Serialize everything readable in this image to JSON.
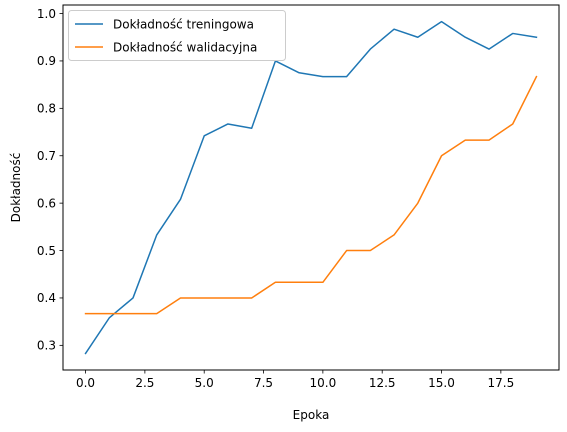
{
  "chart_data": {
    "type": "line",
    "title": "",
    "xlabel": "Epoka",
    "ylabel": "Dokładność",
    "xlim": [
      -0.95,
      19.95
    ],
    "ylim": [
      0.248,
      1.018
    ],
    "x_ticks": [
      0.0,
      2.5,
      5.0,
      7.5,
      10.0,
      12.5,
      15.0,
      17.5
    ],
    "x_tick_labels": [
      "0.0",
      "2.5",
      "5.0",
      "7.5",
      "10.0",
      "12.5",
      "15.0",
      "17.5"
    ],
    "y_ticks": [
      0.3,
      0.4,
      0.5,
      0.6,
      0.7,
      0.8,
      0.9,
      1.0
    ],
    "y_tick_labels": [
      "0.3",
      "0.4",
      "0.5",
      "0.6",
      "0.7",
      "0.8",
      "0.9",
      "1.0"
    ],
    "grid": false,
    "legend_position": "top-left",
    "x": [
      0,
      1,
      2,
      3,
      4,
      5,
      6,
      7,
      8,
      9,
      10,
      11,
      12,
      13,
      14,
      15,
      16,
      17,
      18,
      19
    ],
    "series": [
      {
        "name": "Dokładność treningowa",
        "color": "#1f77b4",
        "values": [
          0.283,
          0.358,
          0.4,
          0.533,
          0.608,
          0.742,
          0.767,
          0.758,
          0.9,
          0.875,
          0.867,
          0.867,
          0.925,
          0.967,
          0.95,
          0.983,
          0.95,
          0.925,
          0.958,
          0.95
        ]
      },
      {
        "name": "Dokładność walidacyjna",
        "color": "#ff7f0e",
        "values": [
          0.367,
          0.367,
          0.367,
          0.367,
          0.4,
          0.4,
          0.4,
          0.4,
          0.433,
          0.433,
          0.433,
          0.5,
          0.5,
          0.533,
          0.6,
          0.7,
          0.733,
          0.733,
          0.767,
          0.867
        ]
      }
    ]
  }
}
